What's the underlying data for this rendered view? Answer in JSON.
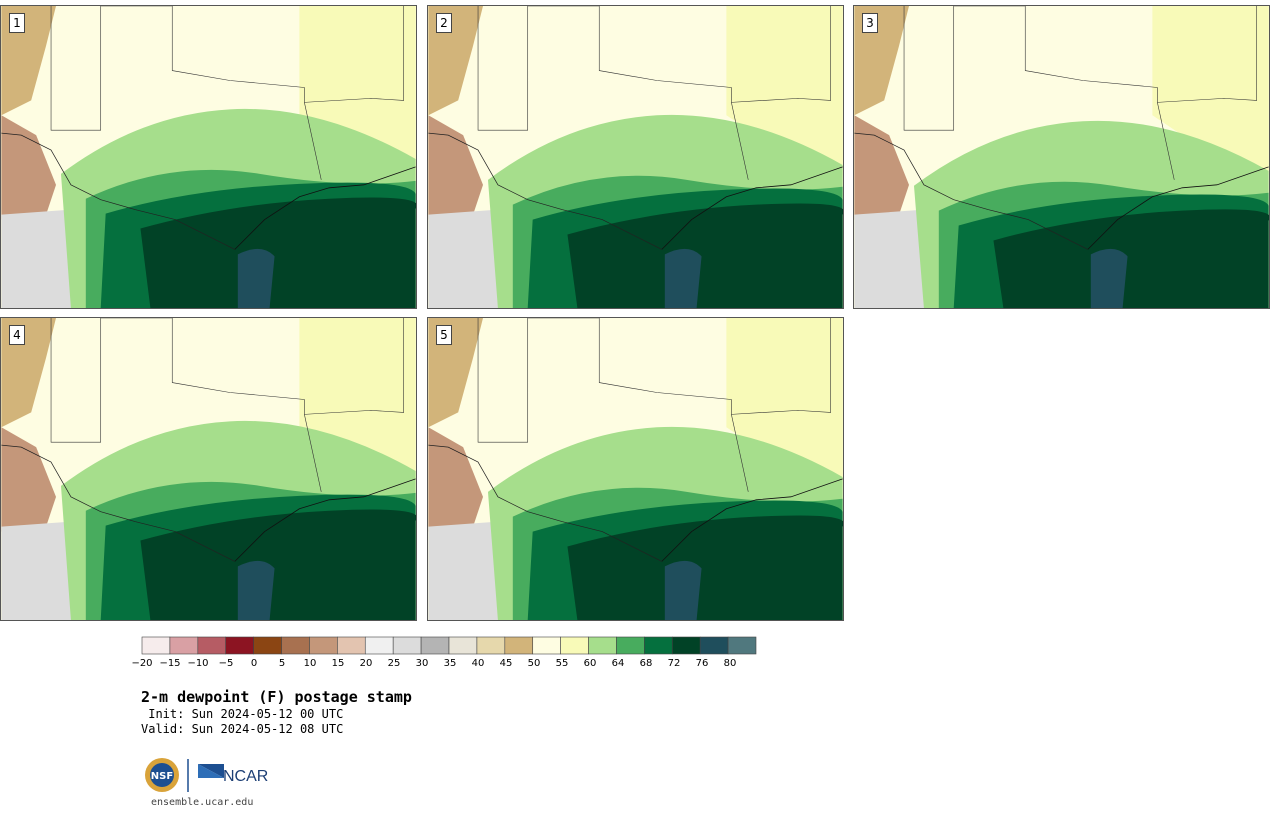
{
  "product": {
    "title": "2-m dewpoint (F) postage stamp",
    "init_line": " Init: Sun 2024-05-12 00 UTC",
    "valid_line": "Valid: Sun 2024-05-12 08 UTC",
    "website": "ensemble.ucar.edu",
    "logos": [
      "NSF",
      "NCAR"
    ]
  },
  "members": [
    "1",
    "2",
    "3",
    "4",
    "5"
  ],
  "colorbar": {
    "tick_labels": [
      "−20",
      "−15",
      "−10",
      "−5",
      "0",
      "5",
      "10",
      "15",
      "20",
      "25",
      "30",
      "35",
      "40",
      "45",
      "50",
      "55",
      "60",
      "64",
      "68",
      "72",
      "76",
      "80"
    ],
    "colors": [
      "#f6ecec",
      "#d9a0a4",
      "#b65c64",
      "#8c1422",
      "#8b4513",
      "#a87150",
      "#c4977a",
      "#e3c4b0",
      "#f0f0f0",
      "#dcdcdc",
      "#b4b4b4",
      "#e8e4d8",
      "#e6d8ac",
      "#d2b47a",
      "#fefde2",
      "#f8fab8",
      "#a6de8c",
      "#48ac5e",
      "#05703e",
      "#014226",
      "#1f4e5c",
      "#50787e"
    ]
  },
  "map_fill_colors": {
    "outer": "#f8fab8",
    "land": "#fefde2",
    "dry_brown": "#c4977a",
    "gray": "#dcdcdc",
    "tan": "#d2b47a",
    "green1": "#a6de8c",
    "green2": "#48ac5e",
    "green3": "#05703e",
    "green4": "#014226",
    "teal": "#1f4e5c"
  }
}
